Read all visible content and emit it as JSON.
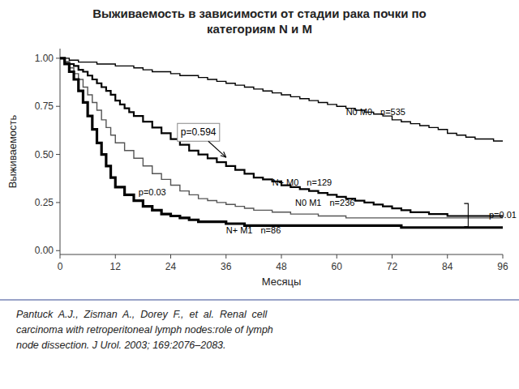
{
  "chart_data": {
    "type": "step",
    "title": "Выживаемость в зависимости от стадии рака почки по\nкатегориям N и М",
    "x_label": "Месяцы",
    "y_label": "Выживаемость",
    "xlim": [
      0,
      96
    ],
    "ylim": [
      -0.02,
      1.05
    ],
    "xticks": [
      0,
      12,
      24,
      36,
      48,
      60,
      72,
      84,
      96
    ],
    "yticks": [
      {
        "value": 0.0,
        "label": "0.00"
      },
      {
        "value": 0.25,
        "label": "0.25"
      },
      {
        "value": 0.5,
        "label": "0.50"
      },
      {
        "value": 0.75,
        "label": "0.75"
      },
      {
        "value": 1.0,
        "label": "1.00"
      }
    ],
    "grid": false,
    "series": [
      {
        "name": "N0 M0",
        "n": "n=535",
        "color": "#000000",
        "label_x": 62,
        "label_y": 0.72,
        "x": [
          0,
          2,
          4,
          6,
          8,
          10,
          12,
          14,
          16,
          18,
          20,
          22,
          24,
          26,
          28,
          30,
          32,
          34,
          36,
          38,
          40,
          42,
          44,
          46,
          48,
          50,
          52,
          54,
          56,
          58,
          60,
          62,
          64,
          66,
          68,
          70,
          72,
          74,
          76,
          78,
          80,
          82,
          84,
          86,
          88,
          90,
          92,
          94,
          96
        ],
        "values": [
          1.0,
          0.99,
          0.98,
          0.98,
          0.97,
          0.97,
          0.96,
          0.96,
          0.95,
          0.94,
          0.93,
          0.93,
          0.92,
          0.91,
          0.91,
          0.9,
          0.89,
          0.88,
          0.87,
          0.86,
          0.85,
          0.84,
          0.83,
          0.82,
          0.81,
          0.8,
          0.79,
          0.78,
          0.77,
          0.76,
          0.75,
          0.74,
          0.73,
          0.72,
          0.71,
          0.7,
          0.68,
          0.67,
          0.66,
          0.65,
          0.64,
          0.63,
          0.61,
          0.6,
          0.59,
          0.58,
          0.58,
          0.57,
          0.57
        ]
      },
      {
        "name": "N+ M0",
        "n": "n=129",
        "color": "#000000",
        "label_x": 46,
        "label_y": 0.355,
        "x": [
          0,
          1,
          2,
          3,
          4,
          5,
          6,
          7,
          8,
          9,
          10,
          11,
          12,
          13,
          14,
          15,
          16,
          18,
          20,
          22,
          24,
          26,
          28,
          30,
          32,
          34,
          36,
          38,
          40,
          42,
          44,
          46,
          48,
          50,
          52,
          54,
          56,
          58,
          60,
          62,
          64,
          66,
          68,
          70,
          72,
          74,
          76,
          78,
          80,
          82,
          84,
          86,
          88,
          90,
          92,
          94,
          96
        ],
        "values": [
          1.0,
          0.98,
          0.97,
          0.96,
          0.94,
          0.93,
          0.91,
          0.89,
          0.87,
          0.85,
          0.83,
          0.81,
          0.78,
          0.76,
          0.74,
          0.72,
          0.7,
          0.67,
          0.64,
          0.61,
          0.58,
          0.55,
          0.52,
          0.5,
          0.48,
          0.46,
          0.44,
          0.42,
          0.4,
          0.38,
          0.37,
          0.36,
          0.34,
          0.33,
          0.32,
          0.31,
          0.3,
          0.29,
          0.28,
          0.27,
          0.26,
          0.25,
          0.24,
          0.23,
          0.22,
          0.21,
          0.2,
          0.2,
          0.19,
          0.19,
          0.18,
          0.18,
          0.18,
          0.18,
          0.18,
          0.18,
          0.18
        ]
      },
      {
        "name": "N0 M1",
        "n": "n=236",
        "color": "#555555",
        "label_x": 51,
        "label_y": 0.25,
        "x": [
          0,
          1,
          2,
          3,
          4,
          5,
          6,
          7,
          8,
          9,
          10,
          11,
          12,
          14,
          16,
          18,
          20,
          22,
          24,
          26,
          28,
          30,
          32,
          34,
          36,
          38,
          40,
          42,
          44,
          46,
          48,
          50,
          52,
          54,
          56,
          58,
          60,
          62,
          64,
          66,
          68,
          70,
          72,
          74,
          76,
          78,
          80,
          82,
          84,
          86,
          88,
          90,
          92,
          94,
          96
        ],
        "values": [
          1.0,
          0.98,
          0.95,
          0.92,
          0.89,
          0.85,
          0.81,
          0.77,
          0.73,
          0.68,
          0.64,
          0.6,
          0.56,
          0.52,
          0.48,
          0.44,
          0.4,
          0.37,
          0.34,
          0.31,
          0.29,
          0.27,
          0.26,
          0.25,
          0.24,
          0.23,
          0.22,
          0.21,
          0.21,
          0.2,
          0.2,
          0.19,
          0.19,
          0.19,
          0.18,
          0.18,
          0.18,
          0.17,
          0.17,
          0.17,
          0.17,
          0.17,
          0.17,
          0.17,
          0.17,
          0.17,
          0.17,
          0.17,
          0.17,
          0.17,
          0.17,
          0.17,
          0.17,
          0.17,
          0.17
        ]
      },
      {
        "name": "N+ M1",
        "n": "n=86",
        "color": "#000000",
        "label_x": 36,
        "label_y": 0.105,
        "x": [
          0,
          1,
          2,
          3,
          4,
          5,
          6,
          7,
          8,
          9,
          10,
          11,
          12,
          14,
          16,
          18,
          20,
          22,
          24,
          26,
          28,
          30,
          32,
          34,
          36,
          38,
          40,
          42,
          44,
          46,
          48,
          50,
          52,
          54,
          56,
          58,
          60,
          62,
          64,
          66,
          68,
          70,
          72,
          74,
          76,
          78,
          80,
          82,
          84,
          86,
          88,
          90,
          92,
          94,
          96
        ],
        "values": [
          1.0,
          0.97,
          0.93,
          0.89,
          0.83,
          0.77,
          0.7,
          0.63,
          0.56,
          0.5,
          0.44,
          0.38,
          0.33,
          0.29,
          0.26,
          0.23,
          0.21,
          0.19,
          0.18,
          0.17,
          0.16,
          0.15,
          0.15,
          0.15,
          0.14,
          0.14,
          0.13,
          0.13,
          0.13,
          0.13,
          0.13,
          0.13,
          0.13,
          0.13,
          0.13,
          0.13,
          0.13,
          0.13,
          0.13,
          0.13,
          0.13,
          0.13,
          0.13,
          0.12,
          0.12,
          0.12,
          0.12,
          0.12,
          0.12,
          0.12,
          0.12,
          0.12,
          0.12,
          0.12,
          0.12
        ]
      }
    ],
    "annotations": [
      {
        "text": "p=0.594",
        "x": 30,
        "y": 0.615,
        "arrow_x": 36,
        "arrow_y": 0.485
      },
      {
        "text": "p=0.03",
        "x": 20,
        "y": 0.305
      },
      {
        "text": "p=0.01",
        "x": 93,
        "y": 0.185,
        "bracket": {
          "x": 88.5,
          "from": 0.125,
          "to": 0.245
        }
      }
    ],
    "caption": "Pantuck  A.J.,  Zisman  A.,  Dorey  F.,  et  al.  Renal  cell\ncarcinoma with retroperitoneal lymph nodes:role of lymph\nnode dissection. J Urol. 2003; 169:2076–2083."
  }
}
